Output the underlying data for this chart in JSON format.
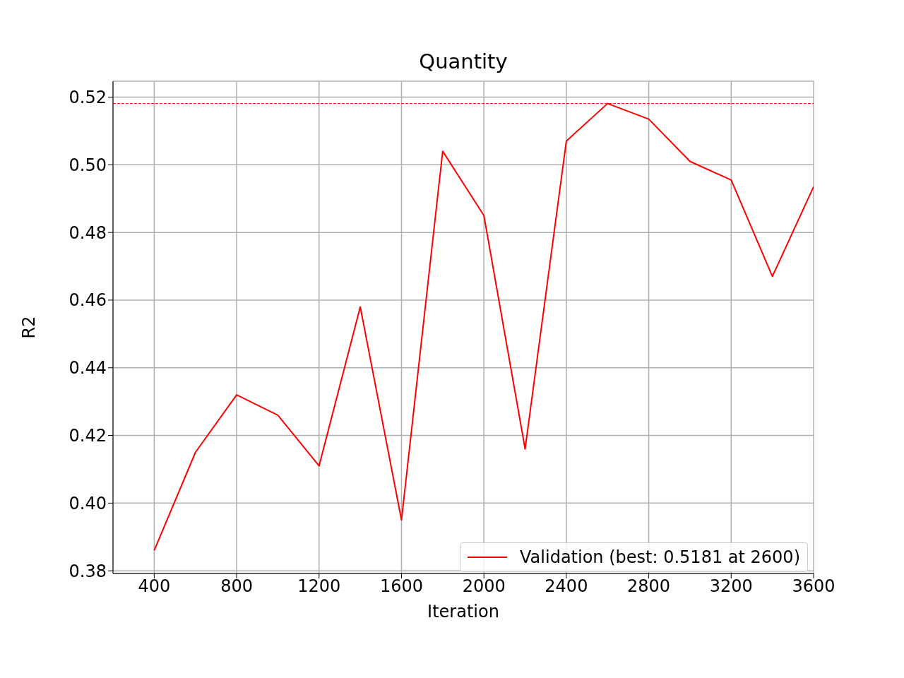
{
  "chart_data": {
    "type": "line",
    "title": "Quantity",
    "xlabel": "Iteration",
    "ylabel": "R2",
    "x": [
      400,
      600,
      800,
      1000,
      1200,
      1400,
      1600,
      1800,
      2000,
      2200,
      2400,
      2600,
      2800,
      3000,
      3200,
      3400,
      3600
    ],
    "series": [
      {
        "name": "Validation (best: 0.5181 at 2600)",
        "color": "#ff0000",
        "values": [
          0.386,
          0.415,
          0.432,
          0.426,
          0.411,
          0.458,
          0.395,
          0.504,
          0.485,
          0.416,
          0.507,
          0.5181,
          0.5135,
          0.501,
          0.4955,
          0.467,
          0.4935
        ]
      }
    ],
    "xlim": [
      200,
      3600
    ],
    "xticks": [
      400,
      800,
      1200,
      1600,
      2000,
      2400,
      2800,
      3200,
      3600
    ],
    "ylim": [
      0.3792,
      0.5247
    ],
    "yticks": [
      0.38,
      {
        "value": 0.4,
        "label": "0.40"
      },
      0.42,
      0.44,
      0.46,
      0.48,
      {
        "value": 0.5,
        "label": "0.50"
      },
      0.52
    ],
    "ref_lines": [
      {
        "axis": "y",
        "value": 0.5181,
        "color": "#ff0000",
        "line_style": "dashed"
      }
    ],
    "grid": true,
    "legend": "bottom right",
    "marker": "none",
    "line_style": "solid"
  }
}
